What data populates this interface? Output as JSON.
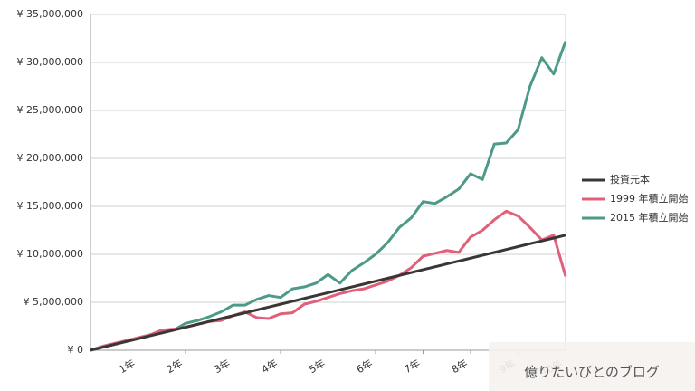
{
  "chart_data": {
    "type": "line",
    "x": [
      0,
      3,
      6,
      9,
      12,
      15,
      18,
      21,
      24,
      27,
      30,
      33,
      36,
      39,
      42,
      45,
      48,
      51,
      54,
      57,
      60,
      63,
      66,
      69,
      72,
      75,
      78,
      81,
      84,
      87,
      90,
      93,
      96,
      99,
      102,
      105,
      108,
      111,
      114,
      117,
      120
    ],
    "xlim": [
      0,
      120
    ],
    "xticks": [
      {
        "value": 12,
        "label": "1年"
      },
      {
        "value": 24,
        "label": "2年"
      },
      {
        "value": 36,
        "label": "3年"
      },
      {
        "value": 48,
        "label": "4年"
      },
      {
        "value": 60,
        "label": "5年"
      },
      {
        "value": 72,
        "label": "6年"
      },
      {
        "value": 84,
        "label": "7年"
      },
      {
        "value": 96,
        "label": "8年"
      },
      {
        "value": 108,
        "label": "9年"
      },
      {
        "value": 120,
        "label": "10年"
      }
    ],
    "ylim": [
      0,
      35000000
    ],
    "yticks": [
      {
        "value": 0,
        "label": "¥ 0"
      },
      {
        "value": 5000000,
        "label": "¥ 5,000,000"
      },
      {
        "value": 10000000,
        "label": "¥ 10,000,000"
      },
      {
        "value": 15000000,
        "label": "¥ 15,000,000"
      },
      {
        "value": 20000000,
        "label": "¥ 20,000,000"
      },
      {
        "value": 25000000,
        "label": "¥ 25,000,000"
      },
      {
        "value": 30000000,
        "label": "¥ 30,000,000"
      },
      {
        "value": 35000000,
        "label": "¥ 35,000,000"
      }
    ],
    "grid": true,
    "legend": "right",
    "series": [
      {
        "name": "投資元本",
        "color": "#3a3636",
        "values": [
          0,
          300000,
          600000,
          900000,
          1200000,
          1500000,
          1800000,
          2100000,
          2400000,
          2700000,
          3000000,
          3300000,
          3600000,
          3900000,
          4200000,
          4500000,
          4800000,
          5100000,
          5400000,
          5700000,
          6000000,
          6300000,
          6600000,
          6900000,
          7200000,
          7500000,
          7800000,
          8100000,
          8400000,
          8700000,
          9000000,
          9300000,
          9600000,
          9900000,
          10200000,
          10500000,
          10800000,
          11100000,
          11400000,
          11700000,
          12000000
        ]
      },
      {
        "name": "1999 年積立開始",
        "color": "#e0607a",
        "values": [
          0,
          400000,
          700000,
          1000000,
          1300000,
          1600000,
          2100000,
          2200000,
          2400000,
          2700000,
          3000000,
          3100000,
          3600000,
          4000000,
          3400000,
          3300000,
          3800000,
          3900000,
          4800000,
          5100000,
          5500000,
          5900000,
          6200000,
          6400000,
          6800000,
          7200000,
          7800000,
          8600000,
          9800000,
          10100000,
          10400000,
          10200000,
          11800000,
          12500000,
          13600000,
          14500000,
          14000000,
          12800000,
          11500000,
          12000000,
          7700000
        ]
      },
      {
        "name": "2015 年積立開始",
        "color": "#4e9a8a",
        "values": [
          0,
          400000,
          700000,
          1000000,
          1300000,
          1600000,
          1900000,
          2100000,
          2800000,
          3100000,
          3500000,
          4000000,
          4700000,
          4700000,
          5300000,
          5700000,
          5500000,
          6400000,
          6600000,
          7000000,
          7900000,
          7000000,
          8300000,
          9100000,
          10000000,
          11200000,
          12800000,
          13800000,
          15500000,
          15300000,
          16000000,
          16800000,
          18400000,
          17800000,
          21500000,
          21600000,
          23000000,
          27500000,
          30500000,
          28800000,
          32200000
        ]
      }
    ]
  },
  "watermark": "億りたいびとのブログ"
}
